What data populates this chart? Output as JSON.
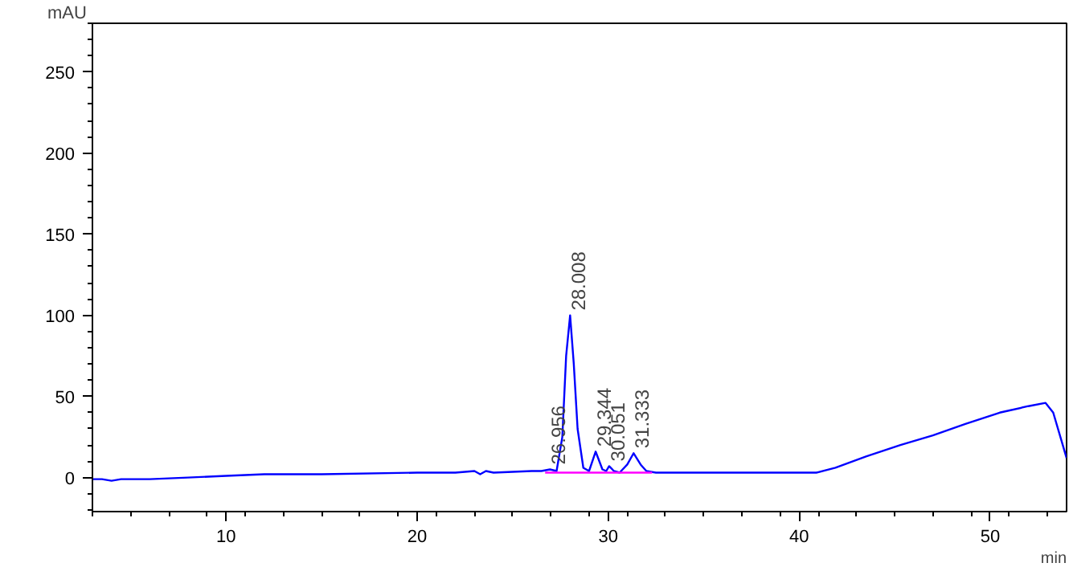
{
  "chart_data": {
    "type": "line",
    "xlabel": "min",
    "ylabel": "mAU",
    "xlim": [
      3.0,
      54.0
    ],
    "ylim": [
      -21,
      280
    ],
    "xticks": [
      10,
      20,
      30,
      40,
      50
    ],
    "yticks": [
      0,
      50,
      100,
      150,
      200,
      250
    ],
    "grid": false,
    "series": [
      {
        "color": "#0000ff",
        "x": [
          3.0,
          3.5,
          4.0,
          4.5,
          5.0,
          6.0,
          8.0,
          10.0,
          12.0,
          15.0,
          20.0,
          22.0,
          23.0,
          23.3,
          23.6,
          24.0,
          26.0,
          26.5,
          26.956,
          27.3,
          27.6,
          27.8,
          28.008,
          28.2,
          28.4,
          28.7,
          29.0,
          29.344,
          29.7,
          29.9,
          30.051,
          30.3,
          30.6,
          31.0,
          31.333,
          31.7,
          32.0,
          32.5,
          34.0,
          38.0,
          40.9,
          41.9,
          43.5,
          45.3,
          47.0,
          48.7,
          50.5,
          52.0,
          52.9,
          53.3,
          54.0
        ],
        "values": [
          -1,
          -1,
          -2,
          -1,
          -1,
          -1,
          0,
          1,
          2,
          2,
          3,
          3,
          4,
          2,
          4,
          3,
          4,
          4,
          5,
          4,
          25,
          75,
          100,
          70,
          30,
          6,
          4,
          16,
          5,
          4,
          7,
          4,
          3,
          8,
          15,
          8,
          4,
          3,
          3,
          3,
          3,
          6,
          13,
          20,
          26,
          33,
          40,
          44,
          46,
          40,
          12
        ]
      },
      {
        "color": "#ff00ff",
        "x": [
          26.7,
          32.3
        ],
        "values": [
          3.0,
          3.0
        ]
      }
    ],
    "annotations": [
      {
        "text": "26.956",
        "x": 26.956,
        "y": 5
      },
      {
        "text": "28.008",
        "x": 28.008,
        "y": 100
      },
      {
        "text": "29.344",
        "x": 29.344,
        "y": 16
      },
      {
        "text": "30.051",
        "x": 30.051,
        "y": 7
      },
      {
        "text": "31.333",
        "x": 31.333,
        "y": 15
      }
    ]
  }
}
